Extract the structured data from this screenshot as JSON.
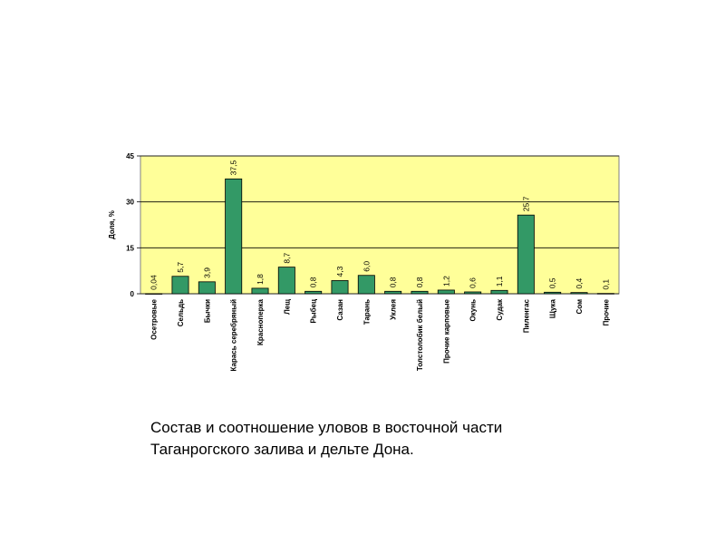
{
  "chart_data": {
    "type": "bar",
    "ylabel": "Доля, %",
    "ylim": [
      0,
      45
    ],
    "yticks": [
      0,
      15,
      30,
      45
    ],
    "grid": true,
    "categories": [
      "Осетровые",
      "Сельдь",
      "Бычки",
      "Карась серебряный",
      "Красноперка",
      "Лещ",
      "Рыбец",
      "Сазан",
      "Тарань",
      "Уклея",
      "Толстолобик  белый",
      "Прочие карповые",
      "Окунь",
      "Судак",
      "Пиленгас",
      "Щука",
      "Сом",
      "Прочие"
    ],
    "values": [
      0.04,
      5.7,
      3.9,
      37.5,
      1.8,
      8.7,
      0.8,
      4.3,
      6.0,
      0.8,
      0.8,
      1.2,
      0.6,
      1.1,
      25.7,
      0.5,
      0.4,
      0.1
    ],
    "value_labels": [
      "0,04",
      "5,7",
      "3,9",
      "37,5",
      "1,8",
      "8,7",
      "0,8",
      "4,3",
      "6,0",
      "0,8",
      "0,8",
      "1,2",
      "0,6",
      "1,1",
      "25,7",
      "0,5",
      "0,4",
      "0,1"
    ],
    "colors": {
      "plot_background": "#FFFF99",
      "bar_fill": "#339966",
      "bar_stroke": "#000000",
      "grid": "#000000"
    }
  },
  "caption": {
    "line1": "Состав и соотношение уловов в восточной части",
    "line2": "Таганрогского залива и дельте Дона."
  }
}
